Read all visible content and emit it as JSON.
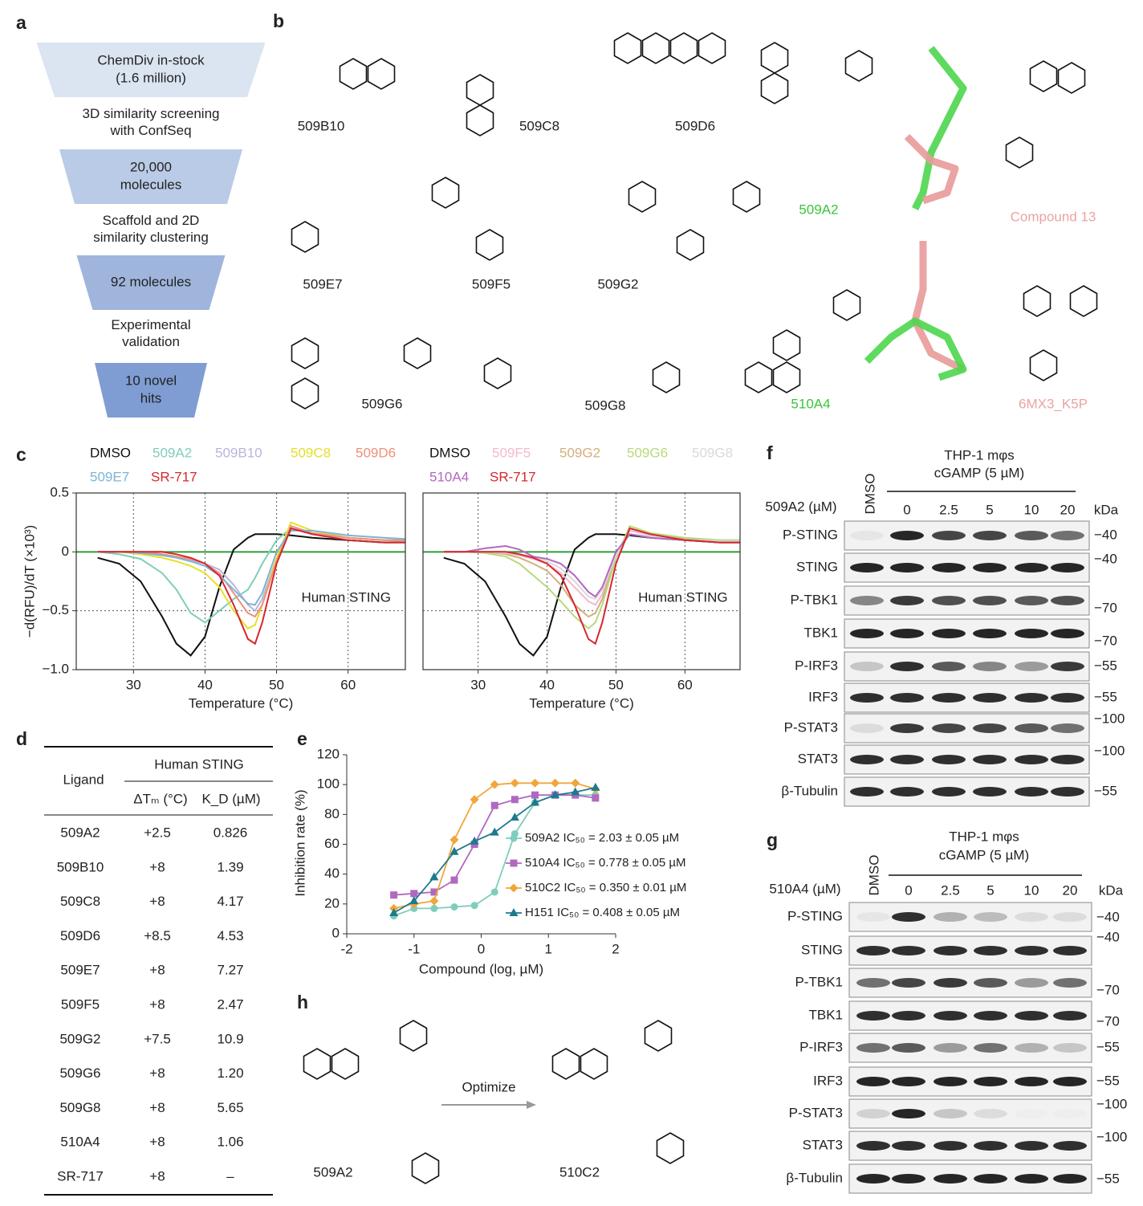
{
  "panel_labels": [
    "a",
    "b",
    "c",
    "d",
    "e",
    "f",
    "g",
    "h"
  ],
  "funnel": {
    "stages": [
      [
        "ChemDiv in-stock",
        "(1.6 million)"
      ],
      [
        "20,000",
        "molecules"
      ],
      [
        "92 molecules"
      ],
      [
        "10 novel",
        "hits"
      ]
    ],
    "steps": [
      [
        "3D similarity screening",
        "with ConfSeq"
      ],
      [
        "Scaffold and 2D",
        "similarity clustering"
      ],
      [
        "Experimental",
        "validation"
      ]
    ]
  },
  "structures": [
    {
      "name": "509B10"
    },
    {
      "name": "509C8"
    },
    {
      "name": "509D6"
    },
    {
      "name": "509A2",
      "color": "#3cc43c"
    },
    {
      "name": "Compound 13",
      "color": "#eba3a3"
    },
    {
      "name": "509E7"
    },
    {
      "name": "509F5"
    },
    {
      "name": "509G2"
    },
    {
      "name": "509G6"
    },
    {
      "name": "509G8"
    },
    {
      "name": "510A4",
      "color": "#3cc43c"
    },
    {
      "name": "6MX3_K5P",
      "color": "#eba3a3"
    }
  ],
  "chart_data": [
    {
      "type": "line",
      "xlabel": "Temperature (°C)",
      "ylabel": "−d(RFU)/dT (×10³)",
      "annotation": "Human STING",
      "grid": true,
      "show_ytick_labels": true,
      "hline": 0,
      "hline_color": "#2e9e3a",
      "xlim": [
        22,
        68
      ],
      "ylim": [
        -1,
        0.5
      ],
      "xticks": [
        30,
        40,
        50,
        60
      ],
      "yticks": [
        {
          "value": -1,
          "label": "−1.0"
        },
        {
          "value": -0.5,
          "label": "−0.5"
        },
        0,
        0.5
      ],
      "x": [
        25,
        28,
        31,
        34,
        36,
        38,
        40,
        42,
        44,
        46,
        47,
        48,
        50,
        52,
        55,
        60,
        65,
        68
      ],
      "series": [
        {
          "name": "DMSO",
          "color": "#111111",
          "values": [
            -0.05,
            -0.1,
            -0.25,
            -0.55,
            -0.78,
            -0.88,
            -0.72,
            -0.3,
            0.02,
            0.12,
            0.15,
            0.15,
            0.15,
            0.14,
            0.12,
            0.1,
            0.08,
            0.08
          ]
        },
        {
          "name": "509A2",
          "color": "#7fcdbb",
          "values": [
            0,
            -0.02,
            -0.06,
            -0.18,
            -0.32,
            -0.52,
            -0.6,
            -0.5,
            -0.4,
            -0.32,
            -0.22,
            -0.1,
            0.1,
            0.2,
            0.15,
            0.12,
            0.1,
            0.1
          ]
        },
        {
          "name": "509B10",
          "color": "#b8b5dd",
          "values": [
            0,
            0,
            -0.01,
            -0.02,
            -0.04,
            -0.07,
            -0.1,
            -0.15,
            -0.28,
            -0.45,
            -0.5,
            -0.4,
            -0.05,
            0.2,
            0.16,
            0.12,
            0.1,
            0.09
          ]
        },
        {
          "name": "509C8",
          "color": "#e6e02a",
          "values": [
            0,
            0,
            -0.02,
            -0.05,
            -0.08,
            -0.12,
            -0.18,
            -0.3,
            -0.5,
            -0.65,
            -0.62,
            -0.45,
            -0.05,
            0.25,
            0.18,
            0.12,
            0.1,
            0.1
          ]
        },
        {
          "name": "509D6",
          "color": "#f08e7a",
          "values": [
            0,
            0,
            0,
            -0.02,
            -0.04,
            -0.06,
            -0.1,
            -0.18,
            -0.35,
            -0.52,
            -0.55,
            -0.45,
            -0.08,
            0.22,
            0.16,
            0.12,
            0.1,
            0.1
          ]
        },
        {
          "name": "509E7",
          "color": "#7bb5d6",
          "values": [
            0,
            0,
            -0.01,
            -0.03,
            -0.05,
            -0.08,
            -0.12,
            -0.2,
            -0.32,
            -0.44,
            -0.45,
            -0.35,
            0,
            0.18,
            0.18,
            0.14,
            0.12,
            0.11
          ]
        },
        {
          "name": "SR-717",
          "color": "#d6272e",
          "values": [
            0,
            0,
            0,
            0,
            -0.02,
            -0.05,
            -0.1,
            -0.2,
            -0.45,
            -0.74,
            -0.78,
            -0.6,
            -0.1,
            0.2,
            0.15,
            0.1,
            0.08,
            0.08
          ]
        }
      ]
    },
    {
      "type": "line",
      "xlabel": "Temperature (°C)",
      "annotation": "Human STING",
      "grid": true,
      "show_ytick_labels": false,
      "hline": 0,
      "hline_color": "#2e9e3a",
      "xlim": [
        22,
        68
      ],
      "ylim": [
        -1,
        0.5
      ],
      "xticks": [
        30,
        40,
        50,
        60
      ],
      "yticks": [
        -1,
        -0.5,
        0,
        0.5
      ],
      "x": [
        25,
        28,
        31,
        34,
        36,
        38,
        40,
        42,
        44,
        46,
        47,
        48,
        50,
        52,
        55,
        60,
        65,
        68
      ],
      "series": [
        {
          "name": "DMSO",
          "color": "#111111",
          "values": [
            -0.05,
            -0.1,
            -0.25,
            -0.55,
            -0.78,
            -0.88,
            -0.72,
            -0.3,
            0.02,
            0.12,
            0.15,
            0.15,
            0.15,
            0.14,
            0.12,
            0.1,
            0.08,
            0.08
          ]
        },
        {
          "name": "509F5",
          "color": "#f5b8d0",
          "values": [
            0,
            0,
            0,
            -0.01,
            -0.03,
            -0.06,
            -0.1,
            -0.18,
            -0.3,
            -0.42,
            -0.45,
            -0.36,
            -0.05,
            0.18,
            0.14,
            0.1,
            0.09,
            0.09
          ]
        },
        {
          "name": "509G2",
          "color": "#d4ae7c",
          "values": [
            0,
            0,
            0,
            -0.02,
            -0.05,
            -0.1,
            -0.16,
            -0.28,
            -0.45,
            -0.55,
            -0.52,
            -0.4,
            -0.05,
            0.2,
            0.15,
            0.11,
            0.1,
            0.1
          ]
        },
        {
          "name": "509G6",
          "color": "#b8d97c",
          "values": [
            0,
            0,
            -0.01,
            -0.04,
            -0.1,
            -0.2,
            -0.3,
            -0.42,
            -0.55,
            -0.65,
            -0.6,
            -0.45,
            -0.05,
            0.22,
            0.16,
            0.12,
            0.1,
            0.1
          ]
        },
        {
          "name": "509G8",
          "color": "#d9d9d9",
          "values": [
            0,
            0,
            0,
            -0.01,
            -0.02,
            -0.04,
            -0.08,
            -0.14,
            -0.25,
            -0.38,
            -0.4,
            -0.32,
            -0.03,
            0.15,
            0.13,
            0.1,
            0.09,
            0.09
          ]
        },
        {
          "name": "510A4",
          "color": "#b069c0",
          "values": [
            0,
            0,
            0.03,
            0.05,
            0.02,
            -0.04,
            -0.06,
            -0.1,
            -0.2,
            -0.34,
            -0.38,
            -0.3,
            0,
            0.15,
            0.12,
            0.1,
            0.08,
            0.08
          ]
        },
        {
          "name": "SR-717",
          "color": "#d6272e",
          "values": [
            0,
            0,
            0,
            0,
            -0.02,
            -0.05,
            -0.1,
            -0.2,
            -0.45,
            -0.74,
            -0.78,
            -0.6,
            -0.1,
            0.2,
            0.15,
            0.1,
            0.08,
            0.08
          ]
        }
      ]
    },
    {
      "type": "dose_response",
      "xlabel": "Compound (log, µM)",
      "ylabel": "Inhibition rate (%)",
      "xlim": [
        -2,
        2
      ],
      "ylim": [
        0,
        120
      ],
      "xticks": [
        -2,
        -1,
        0,
        1,
        2
      ],
      "yticks": [
        0,
        20,
        40,
        60,
        80,
        100,
        120
      ],
      "x": [
        -1.3,
        -1,
        -0.7,
        -0.4,
        -0.1,
        0.2,
        0.5,
        0.8,
        1.1,
        1.4,
        1.7
      ],
      "series": [
        {
          "name": "509A2 IC₅₀ = 2.03 ± 0.05 µM",
          "color": "#7fcdbb",
          "marker": "circle",
          "values": [
            12,
            17,
            17,
            18,
            19,
            28,
            67,
            88,
            93,
            93,
            93
          ]
        },
        {
          "name": "510A4 IC₅₀ = 0.778 ± 0.05 µM",
          "color": "#b069c0",
          "marker": "square",
          "values": [
            26,
            27,
            28,
            36,
            60,
            86,
            90,
            93,
            93,
            93,
            91
          ]
        },
        {
          "name": "510C2 IC₅₀ = 0.350 ± 0.01 µM",
          "color": "#f0a63c",
          "marker": "diamond",
          "values": [
            17,
            20,
            22,
            63,
            90,
            100,
            101,
            101,
            101,
            101,
            97
          ]
        },
        {
          "name": "H151 IC₅₀ = 0.408 ± 0.05 µM",
          "color": "#1e7a8c",
          "marker": "triangle",
          "values": [
            14,
            22,
            38,
            55,
            62,
            68,
            78,
            88,
            93,
            95,
            98
          ]
        }
      ]
    }
  ],
  "table": {
    "ligand_header": "Ligand",
    "group_header": "Human STING",
    "columns": [
      "ΔTₘ (°C)",
      "K_D (µM)"
    ],
    "rows": [
      [
        "509A2",
        "+2.5",
        "0.826"
      ],
      [
        "509B10",
        "+8",
        "1.39"
      ],
      [
        "509C8",
        "+8",
        "4.17"
      ],
      [
        "509D6",
        "+8.5",
        "4.53"
      ],
      [
        "509E7",
        "+8",
        "7.27"
      ],
      [
        "509F5",
        "+8",
        "2.47"
      ],
      [
        "509G2",
        "+7.5",
        "10.9"
      ],
      [
        "509G6",
        "+8",
        "1.20"
      ],
      [
        "509G8",
        "+8",
        "5.65"
      ],
      [
        "510A4",
        "+8",
        "1.06"
      ],
      [
        "SR-717",
        "+8",
        "–"
      ]
    ]
  },
  "blots": [
    {
      "title": [
        "THP-1 mφs",
        "cGAMP (5 µM)"
      ],
      "control": "DMSO",
      "dose_label": "509A2 (µM)",
      "doses": [
        0,
        2.5,
        5,
        10,
        20
      ],
      "unit": "kDa",
      "rows": [
        "P-STING",
        "STING",
        "P-TBK1",
        "TBK1",
        "P-IRF3",
        "IRF3",
        "P-STAT3",
        "STAT3",
        "β-Tubulin"
      ],
      "markers": [
        "−40",
        "−40",
        "−70",
        "−70",
        "−55",
        "−55",
        "−100",
        "−100",
        "−55"
      ]
    },
    {
      "title": [
        "THP-1 mφs",
        "cGAMP (5 µM)"
      ],
      "control": "DMSO",
      "dose_label": "510A4 (µM)",
      "doses": [
        0,
        2.5,
        5,
        10,
        20
      ],
      "unit": "kDa",
      "rows": [
        "P-STING",
        "STING",
        "P-TBK1",
        "TBK1",
        "P-IRF3",
        "IRF3",
        "P-STAT3",
        "STAT3",
        "β-Tubulin"
      ],
      "markers": [
        "−40",
        "−40",
        "−70",
        "−70",
        "−55",
        "−55",
        "−100",
        "−100",
        "−55"
      ]
    }
  ],
  "optimization": {
    "from": "509A2",
    "to": "510C2",
    "action": "Optimize"
  }
}
